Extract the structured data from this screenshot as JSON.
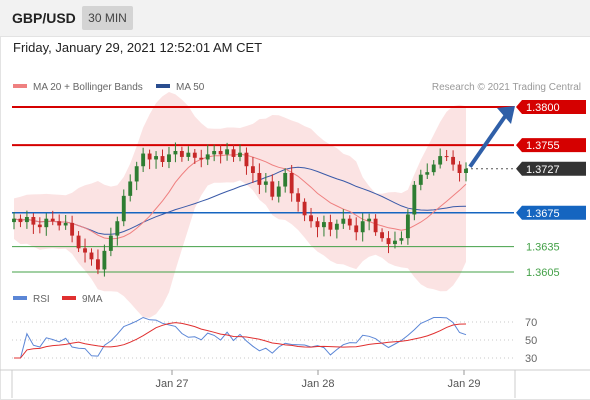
{
  "header": {
    "symbol": "GBP/USD",
    "interval": "30 MIN"
  },
  "timestamp": "Friday, January 29, 2021 12:52:01 AM CET",
  "legend": {
    "ma20": "MA 20 + Bollinger Bands",
    "ma50": "MA 50",
    "copyright": "Research © 2021 Trading Central"
  },
  "rsi_legend": {
    "rsi": "RSI",
    "ma": "9MA"
  },
  "colors": {
    "up": "#2e7d32",
    "down": "#c62828",
    "resistance": "#d50000",
    "support": "#1565c0",
    "green_level": "#43a047",
    "bands": "#f8cccc",
    "ma20": "#ef8080",
    "ma50": "#3a5aa8",
    "rsi": "#5b86d6",
    "rsi_ma": "#e03030",
    "arrow": "#2f5fa8"
  },
  "chart_data": [
    {
      "type": "candlestick",
      "title": "GBP/USD 30 MIN",
      "ylim": [
        1.3585,
        1.3815
      ],
      "x_ticks": [
        "Jan 27",
        "Jan 28",
        "Jan 29"
      ],
      "levels": [
        {
          "value": 1.38,
          "label": "1.3800",
          "style": "resistance"
        },
        {
          "value": 1.3755,
          "label": "1.3755",
          "style": "resistance"
        },
        {
          "value": 1.3727,
          "label": "1.3727",
          "style": "current"
        },
        {
          "value": 1.3675,
          "label": "1.3675",
          "style": "support"
        },
        {
          "value": 1.3635,
          "label": "1.3635",
          "style": "green"
        },
        {
          "value": 1.3605,
          "label": "1.3605",
          "style": "green"
        }
      ],
      "close_series": [
        1.3668,
        1.3664,
        1.367,
        1.3661,
        1.3658,
        1.3668,
        1.3665,
        1.366,
        1.3663,
        1.3648,
        1.3633,
        1.3628,
        1.362,
        1.3608,
        1.363,
        1.3648,
        1.3665,
        1.3695,
        1.3712,
        1.373,
        1.3745,
        1.3738,
        1.3742,
        1.3735,
        1.3744,
        1.3748,
        1.3741,
        1.3746,
        1.374,
        1.3738,
        1.3744,
        1.3748,
        1.3744,
        1.375,
        1.3741,
        1.3746,
        1.373,
        1.3722,
        1.3708,
        1.3712,
        1.3694,
        1.3706,
        1.3722,
        1.3698,
        1.3688,
        1.3672,
        1.3665,
        1.3658,
        1.3664,
        1.3655,
        1.3662,
        1.3668,
        1.366,
        1.3652,
        1.3665,
        1.3668,
        1.3652,
        1.3645,
        1.3638,
        1.3642,
        1.3645,
        1.3673,
        1.3708,
        1.372,
        1.3723,
        1.3732,
        1.3742,
        1.3741,
        1.3732,
        1.3722,
        1.3727
      ],
      "annotations": [
        "Projected move toward 1.3800"
      ]
    },
    {
      "type": "line",
      "title": "RSI",
      "ylim": [
        20,
        80
      ],
      "y_ticks": [
        70,
        50,
        30
      ],
      "series_names": [
        "RSI",
        "9MA"
      ]
    }
  ]
}
